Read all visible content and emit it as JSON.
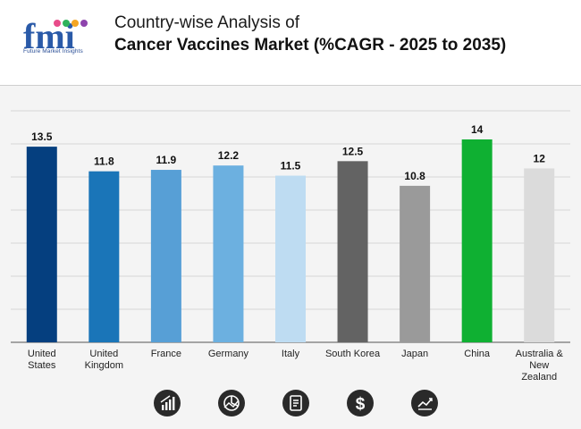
{
  "header": {
    "logo_text": "fmi",
    "logo_tagline": "Future Market Insights",
    "title_line1": "Country-wise Analysis of",
    "title_line2": "Cancer Vaccines Market (%CAGR - 2025 to 2035)"
  },
  "chart_data": {
    "type": "bar",
    "title": "Country-wise Analysis of Cancer Vaccines Market (%CAGR - 2025 to 2035)",
    "categories": [
      "United States",
      "United Kingdom",
      "France",
      "Germany",
      "Italy",
      "South Korea",
      "Japan",
      "China",
      "Australia & New Zealand"
    ],
    "category_lines": [
      [
        "United",
        "States"
      ],
      [
        "United",
        "Kingdom"
      ],
      [
        "France"
      ],
      [
        "Germany"
      ],
      [
        "Italy"
      ],
      [
        "South Korea"
      ],
      [
        "Japan"
      ],
      [
        "China"
      ],
      [
        "Australia &",
        "New",
        "Zealand"
      ]
    ],
    "values": [
      13.5,
      11.8,
      11.9,
      12.2,
      11.5,
      12.5,
      10.8,
      14,
      12
    ],
    "bar_colors": [
      "#053f7f",
      "#1a75b8",
      "#579fd6",
      "#6cb0e0",
      "#bedcf2",
      "#636363",
      "#9a9a9a",
      "#0fb032",
      "#dbdbdb"
    ],
    "xlabel": "",
    "ylabel": "",
    "ylim": [
      0,
      14
    ],
    "grid": true,
    "legend": "none"
  },
  "footer_icons": [
    "bar-growth-icon",
    "pie-chart-icon",
    "report-document-icon",
    "dollar-icon",
    "line-trend-icon"
  ]
}
